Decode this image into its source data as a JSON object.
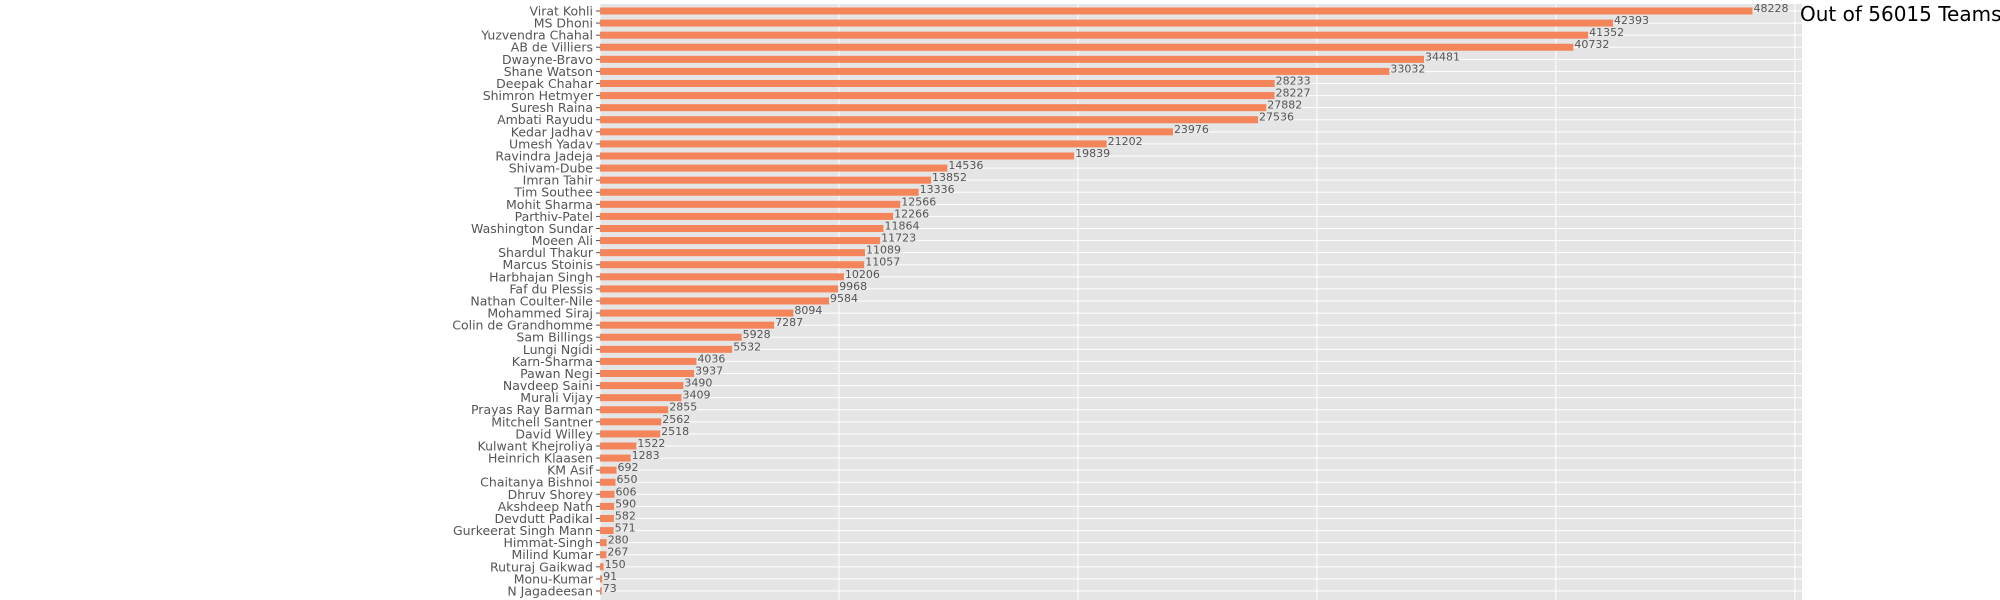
{
  "colors": {
    "bar": "#f4855a",
    "plot_background": "#e5e5e5",
    "grid": "#ffffff",
    "text": "#555555",
    "annotation": "#000000"
  },
  "chart_data": {
    "type": "bar",
    "orientation": "horizontal",
    "title": "",
    "xlabel": "",
    "ylabel": "",
    "annotation": "Out of 56015 Teams",
    "grid": true,
    "xlim": [
      0,
      50300
    ],
    "x_gridlines": [
      0,
      10000,
      20000,
      30000,
      40000,
      50000
    ],
    "categories": [
      "Virat Kohli",
      "MS Dhoni",
      "Yuzvendra Chahal",
      "AB de Villiers",
      "Dwayne-Bravo",
      "Shane Watson",
      "Deepak Chahar",
      "Shimron Hetmyer",
      "Suresh Raina",
      "Ambati Rayudu",
      "Kedar Jadhav",
      "Umesh Yadav",
      "Ravindra Jadeja",
      "Shivam-Dube",
      "Imran Tahir",
      "Tim Southee",
      "Mohit Sharma",
      "Parthiv-Patel",
      "Washington Sundar",
      "Moeen Ali",
      "Shardul Thakur",
      "Marcus Stoinis",
      "Harbhajan Singh",
      "Faf du Plessis",
      "Nathan Coulter-Nile",
      "Mohammed Siraj",
      "Colin de Grandhomme",
      "Sam Billings",
      "Lungi Ngidi",
      "Karn-Sharma",
      "Pawan Negi",
      "Navdeep Saini",
      "Murali Vijay",
      "Prayas Ray Barman",
      "Mitchell Santner",
      "David Willey",
      "Kulwant Khejroliya",
      "Heinrich Klaasen",
      "KM Asif",
      "Chaitanya Bishnoi",
      "Dhruv Shorey",
      "Akshdeep Nath",
      "Devdutt Padikal",
      "Gurkeerat Singh Mann",
      "Himmat-Singh",
      "Milind Kumar",
      "Ruturaj Gaikwad",
      "Monu-Kumar",
      "N Jagadeesan"
    ],
    "values": [
      48228,
      42393,
      41352,
      40732,
      34481,
      33032,
      28233,
      28227,
      27882,
      27536,
      23976,
      21202,
      19839,
      14536,
      13852,
      13336,
      12566,
      12266,
      11864,
      11723,
      11089,
      11057,
      10206,
      9968,
      9584,
      8094,
      7287,
      5928,
      5532,
      4036,
      3937,
      3490,
      3409,
      2855,
      2562,
      2518,
      1522,
      1283,
      692,
      650,
      606,
      590,
      582,
      571,
      280,
      267,
      150,
      91,
      73
    ]
  }
}
